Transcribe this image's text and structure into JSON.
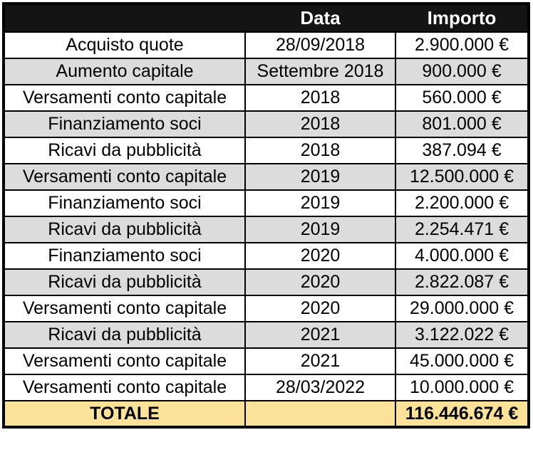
{
  "chart_data": {
    "type": "table",
    "title": "",
    "columns": [
      "",
      "Data",
      "Importo"
    ],
    "rows": [
      {
        "voce": "Acquisto quote",
        "data": "28/09/2018",
        "importo": "2.900.000 €"
      },
      {
        "voce": "Aumento capitale",
        "data": "Settembre 2018",
        "importo": "900.000 €"
      },
      {
        "voce": "Versamenti conto capitale",
        "data": "2018",
        "importo": "560.000 €"
      },
      {
        "voce": "Finanziamento soci",
        "data": "2018",
        "importo": "801.000 €"
      },
      {
        "voce": "Ricavi da pubblicità",
        "data": "2018",
        "importo": "387.094 €"
      },
      {
        "voce": "Versamenti conto capitale",
        "data": "2019",
        "importo": "12.500.000 €"
      },
      {
        "voce": "Finanziamento soci",
        "data": "2019",
        "importo": "2.200.000 €"
      },
      {
        "voce": "Ricavi da pubblicità",
        "data": "2019",
        "importo": "2.254.471 €"
      },
      {
        "voce": "Finanziamento soci",
        "data": "2020",
        "importo": "4.000.000 €"
      },
      {
        "voce": "Ricavi da pubblicità",
        "data": "2020",
        "importo": "2.822.087 €"
      },
      {
        "voce": "Versamenti conto capitale",
        "data": "2020",
        "importo": "29.000.000 €"
      },
      {
        "voce": "Ricavi da pubblicità",
        "data": "2021",
        "importo": "3.122.022 €"
      },
      {
        "voce": "Versamenti conto capitale",
        "data": "2021",
        "importo": "45.000.000 €"
      },
      {
        "voce": "Versamenti conto capitale",
        "data": "28/03/2022",
        "importo": "10.000.000 €"
      }
    ],
    "footer": {
      "voce": "TOTALE",
      "data": "",
      "importo": "116.446.674 €"
    },
    "layout_hints": {
      "zebra_shaded_row_indices": [
        1,
        3,
        5,
        7,
        9,
        11
      ],
      "alignment": "center",
      "grid": true
    }
  },
  "colors": {
    "header_bg": "#141414",
    "header_text": "#ffffff",
    "row_bg": "#ffffff",
    "row_alt_bg": "#dcdcdc",
    "total_bg": "#fbe299",
    "border": "#000000",
    "text": "#000000"
  }
}
